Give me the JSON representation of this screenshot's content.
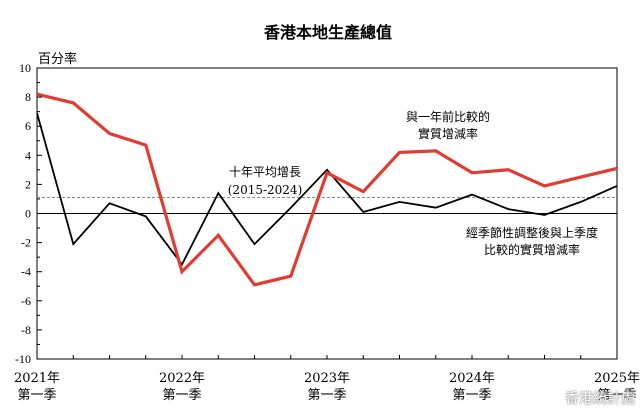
{
  "chart_data": {
    "type": "line",
    "title": "香港本地生產總值",
    "ylabel": "百分率",
    "ylim": [
      -10,
      10
    ],
    "yticks": [
      10,
      8,
      6,
      4,
      2,
      0,
      -2,
      -4,
      -6,
      -8,
      -10
    ],
    "x_tick_labels": [
      {
        "year": "2021年",
        "quarter": "第一季"
      },
      {
        "year": "2022年",
        "quarter": "第一季"
      },
      {
        "year": "2023年",
        "quarter": "第一季"
      },
      {
        "year": "2024年",
        "quarter": "第一季"
      },
      {
        "year": "2025年",
        "quarter": "第一季"
      }
    ],
    "periods": [
      "2021Q1",
      "2021Q2",
      "2021Q3",
      "2021Q4",
      "2022Q1",
      "2022Q2",
      "2022Q3",
      "2022Q4",
      "2023Q1",
      "2023Q2",
      "2023Q3",
      "2023Q4",
      "2024Q1",
      "2024Q2",
      "2024Q3",
      "2024Q4",
      "2025Q1"
    ],
    "series": [
      {
        "name_lines": [
          "與一年前比較的",
          "實質增減率"
        ],
        "color": "#e03c31",
        "values": [
          8.2,
          7.6,
          5.5,
          4.7,
          -4.0,
          -1.5,
          -4.9,
          -4.3,
          2.8,
          1.5,
          4.2,
          4.3,
          2.8,
          3.0,
          1.9,
          2.5,
          3.1
        ]
      },
      {
        "name_lines": [
          "經季節性調整後與上季度",
          "比較的實質增減率"
        ],
        "color": "#000000",
        "values": [
          6.9,
          -2.1,
          0.7,
          -0.2,
          -3.5,
          1.4,
          -2.1,
          0.4,
          3.0,
          0.1,
          0.8,
          0.4,
          1.3,
          0.3,
          -0.1,
          0.8,
          1.9
        ]
      }
    ],
    "reference_line": {
      "value": 1.1,
      "label_lines": [
        "十年平均增長",
        "(2015-2024)"
      ],
      "color": "#888888"
    }
  },
  "watermark": {
    "text": "香港統計處",
    "icon": "wechat-icon"
  }
}
